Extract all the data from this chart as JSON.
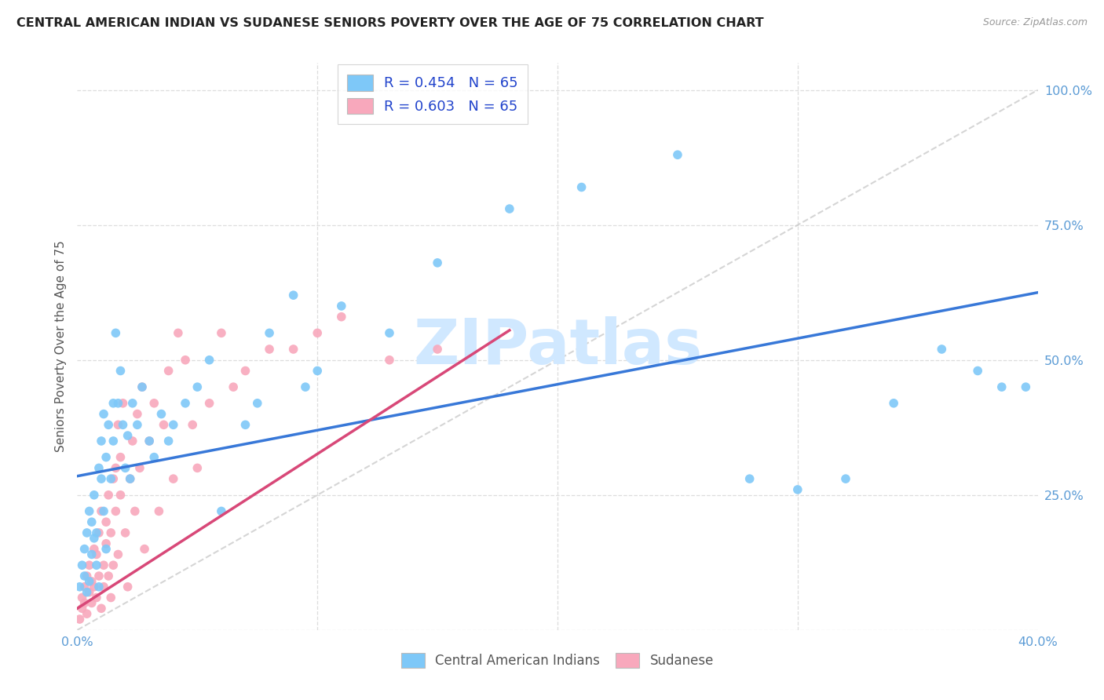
{
  "title": "CENTRAL AMERICAN INDIAN VS SUDANESE SENIORS POVERTY OVER THE AGE OF 75 CORRELATION CHART",
  "source": "Source: ZipAtlas.com",
  "ylabel": "Seniors Poverty Over the Age of 75",
  "xlim": [
    0.0,
    0.4
  ],
  "ylim": [
    0.0,
    1.05
  ],
  "blue_R": 0.454,
  "blue_N": 65,
  "pink_R": 0.603,
  "pink_N": 65,
  "blue_dot_color": "#7EC8F8",
  "pink_dot_color": "#F8A8BC",
  "blue_line_color": "#3878D8",
  "pink_line_color": "#D84878",
  "diag_line_color": "#C8C8C8",
  "grid_color": "#DDDDDD",
  "title_color": "#222222",
  "tick_color": "#5B9BD5",
  "blue_line_x0": 0.0,
  "blue_line_y0": 0.285,
  "blue_line_x1": 0.4,
  "blue_line_y1": 0.625,
  "pink_line_x0": 0.0,
  "pink_line_y0": 0.04,
  "pink_line_x1": 0.18,
  "pink_line_y1": 0.555,
  "blue_scatter_x": [
    0.001,
    0.002,
    0.003,
    0.003,
    0.004,
    0.004,
    0.005,
    0.005,
    0.006,
    0.006,
    0.007,
    0.007,
    0.008,
    0.008,
    0.009,
    0.009,
    0.01,
    0.01,
    0.011,
    0.011,
    0.012,
    0.012,
    0.013,
    0.014,
    0.015,
    0.015,
    0.016,
    0.017,
    0.018,
    0.019,
    0.02,
    0.021,
    0.022,
    0.023,
    0.025,
    0.027,
    0.03,
    0.032,
    0.035,
    0.038,
    0.04,
    0.045,
    0.05,
    0.055,
    0.06,
    0.07,
    0.075,
    0.08,
    0.09,
    0.095,
    0.1,
    0.11,
    0.13,
    0.15,
    0.18,
    0.21,
    0.25,
    0.28,
    0.3,
    0.32,
    0.34,
    0.36,
    0.375,
    0.385,
    0.395
  ],
  "blue_scatter_y": [
    0.08,
    0.12,
    0.1,
    0.15,
    0.07,
    0.18,
    0.09,
    0.22,
    0.14,
    0.2,
    0.25,
    0.17,
    0.18,
    0.12,
    0.3,
    0.08,
    0.35,
    0.28,
    0.22,
    0.4,
    0.15,
    0.32,
    0.38,
    0.28,
    0.42,
    0.35,
    0.55,
    0.42,
    0.48,
    0.38,
    0.3,
    0.36,
    0.28,
    0.42,
    0.38,
    0.45,
    0.35,
    0.32,
    0.4,
    0.35,
    0.38,
    0.42,
    0.45,
    0.5,
    0.22,
    0.38,
    0.42,
    0.55,
    0.62,
    0.45,
    0.48,
    0.6,
    0.55,
    0.68,
    0.78,
    0.82,
    0.88,
    0.28,
    0.26,
    0.28,
    0.42,
    0.52,
    0.48,
    0.45,
    0.45
  ],
  "pink_scatter_x": [
    0.001,
    0.002,
    0.002,
    0.003,
    0.003,
    0.004,
    0.004,
    0.005,
    0.005,
    0.006,
    0.006,
    0.007,
    0.007,
    0.008,
    0.008,
    0.009,
    0.009,
    0.01,
    0.01,
    0.011,
    0.011,
    0.012,
    0.012,
    0.013,
    0.013,
    0.014,
    0.014,
    0.015,
    0.015,
    0.016,
    0.016,
    0.017,
    0.017,
    0.018,
    0.018,
    0.019,
    0.02,
    0.021,
    0.022,
    0.023,
    0.024,
    0.025,
    0.026,
    0.027,
    0.028,
    0.03,
    0.032,
    0.034,
    0.036,
    0.038,
    0.04,
    0.042,
    0.045,
    0.048,
    0.05,
    0.055,
    0.06,
    0.065,
    0.07,
    0.08,
    0.09,
    0.1,
    0.11,
    0.13,
    0.15
  ],
  "pink_scatter_y": [
    0.02,
    0.04,
    0.06,
    0.05,
    0.08,
    0.03,
    0.1,
    0.07,
    0.12,
    0.05,
    0.09,
    0.15,
    0.08,
    0.06,
    0.14,
    0.1,
    0.18,
    0.04,
    0.22,
    0.08,
    0.12,
    0.16,
    0.2,
    0.1,
    0.25,
    0.06,
    0.18,
    0.28,
    0.12,
    0.3,
    0.22,
    0.38,
    0.14,
    0.32,
    0.25,
    0.42,
    0.18,
    0.08,
    0.28,
    0.35,
    0.22,
    0.4,
    0.3,
    0.45,
    0.15,
    0.35,
    0.42,
    0.22,
    0.38,
    0.48,
    0.28,
    0.55,
    0.5,
    0.38,
    0.3,
    0.42,
    0.55,
    0.45,
    0.48,
    0.52,
    0.52,
    0.55,
    0.58,
    0.5,
    0.52
  ]
}
